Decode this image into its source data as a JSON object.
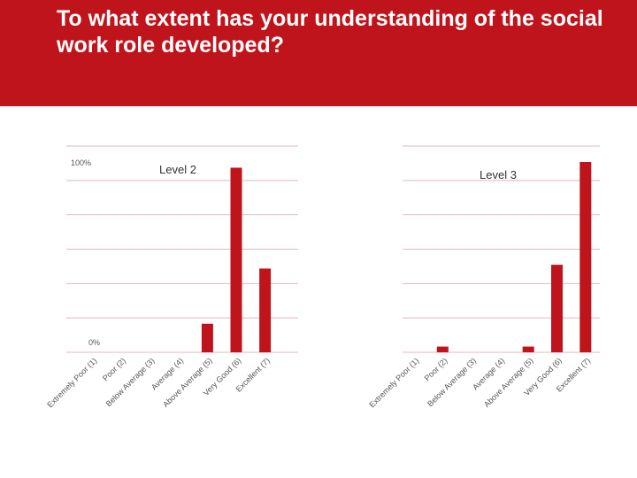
{
  "slide": {
    "title": "To what extent has your understanding of the social work role developed?"
  },
  "colors": {
    "header": "#c0141c",
    "bar": "#c0141c",
    "grid": "#e3b8bb"
  },
  "chart_data": [
    {
      "type": "bar",
      "title": "Level 2",
      "categories": [
        "Extremely Poor (1)",
        "Poor (2)",
        "Below Average (3)",
        "Average (4)",
        "Above Average (5)",
        "Very Good (6)",
        "Excellent (7)"
      ],
      "values": [
        0,
        0,
        0,
        0,
        15,
        97,
        44
      ],
      "ylim": [
        0,
        100
      ],
      "yticks": [
        "100%",
        "0%"
      ],
      "grid": true
    },
    {
      "type": "bar",
      "title": "Level 3",
      "categories": [
        "Extremely Poor (1)",
        "Poor (2)",
        "Below Average (3)",
        "Average (4)",
        "Above Average (5)",
        "Very Good (6)",
        "Excellent (7)"
      ],
      "values": [
        0,
        3,
        0,
        0,
        3,
        46,
        100
      ],
      "ylim": [
        0,
        100
      ],
      "yticks": [],
      "grid": true
    }
  ]
}
